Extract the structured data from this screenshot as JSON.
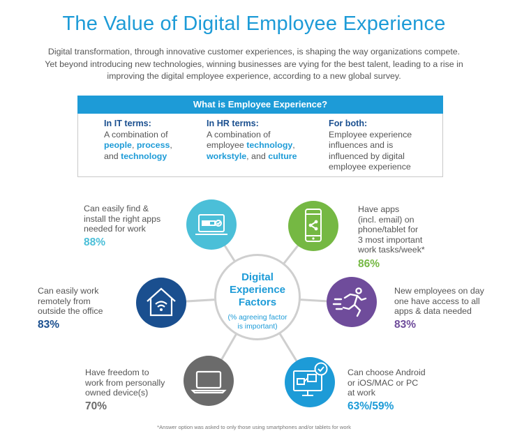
{
  "title": "The Value of Digital Employee Experience",
  "intro": "Digital transformation, through innovative customer experiences, is shaping the way organizations compete. Yet beyond introducing new technologies, winning businesses are vying for the best talent, leading to a rise in improving the digital employee experience, according to a new global survey.",
  "definition_box": {
    "header": "What is Employee Experience?",
    "columns": [
      {
        "heading": "In IT terms:",
        "t1": "A combination of",
        "hl1": "people",
        "sep1": ", ",
        "hl2": "process",
        "sep2": ",",
        "t2": "and",
        "hl3": "technology"
      },
      {
        "heading": "In HR terms:",
        "t1": "A combination of",
        "t2": "employee",
        "hl1": "technology",
        "sep1": ",",
        "hl2": "workstyle",
        "t3": ", and",
        "hl3": "culture"
      },
      {
        "heading": "For both:",
        "body": "Employee experience influences and is influenced by digital employee experience"
      }
    ]
  },
  "center": {
    "title_1": "Digital",
    "title_2": "Experience",
    "title_3": "Factors",
    "subtitle_1": "(% agreeing factor",
    "subtitle_2": "is important)"
  },
  "factors": [
    {
      "l1": "Can easily find &",
      "l2": "install the right apps",
      "l3": "needed for work",
      "value": "88%",
      "color": "#4bbfd8",
      "icon": "laptop-download-icon"
    },
    {
      "l1": "Can easily work",
      "l2": "remotely from",
      "l3": "outside the office",
      "value": "83%",
      "color": "#1a4f8f",
      "icon": "house-wifi-icon"
    },
    {
      "l1": "Have freedom to",
      "l2": "work from personally",
      "l3": "owned device(s)",
      "value": "70%",
      "color": "#6b6b6b",
      "icon": "laptop-icon"
    },
    {
      "l1": "Have apps",
      "l2": "(incl. email) on",
      "l3": "phone/tablet for",
      "l4": "3 most important",
      "l5": "work tasks/week*",
      "value": "86%",
      "color": "#75b843",
      "icon": "phone-share-icon"
    },
    {
      "l1": "New employees on day",
      "l2": "one have access to all",
      "l3": "apps & data needed",
      "value": "83%",
      "color": "#6f4c9b",
      "icon": "runner-icon"
    },
    {
      "l1": "Can choose Android",
      "l2": "or iOS/MAC or PC",
      "l3": "at work",
      "value": "63%/59%",
      "color": "#1d9bd7",
      "icon": "monitor-devices-icon"
    }
  ],
  "footnote": "*Answer option was asked to only those using smartphones and/or tablets for work"
}
